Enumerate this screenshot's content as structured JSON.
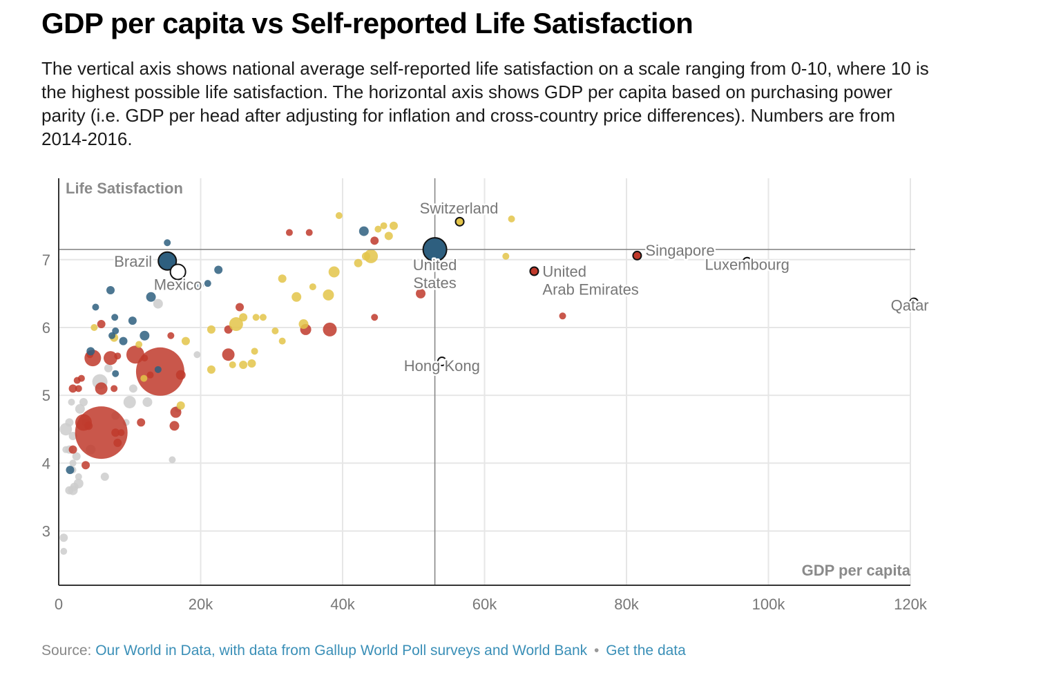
{
  "title": "GDP per capita vs Self-reported Life Satisfaction",
  "subtitle": "The vertical axis shows national average self-reported life satisfaction on a scale ranging from 0-10, where 10 is the highest possible life satisfaction. The horizontal axis shows GDP per capita based on purchasing power parity (i.e. GDP per head after adjusting for inflation and cross-country price differences). Numbers are from 2014-2016.",
  "footer": {
    "source_prefix": "Source:",
    "source_link": "Our World in Data, with data from Gallup World Poll surveys and World Bank",
    "separator": "•",
    "data_link": "Get the data"
  },
  "colors": {
    "grey": "#cccccc",
    "red": "#c0392b",
    "yellow": "#e3c449",
    "blue": "#2e5f7f",
    "grid": "#e6e6e6",
    "reference_line": "#888888",
    "link": "#3a8fb7"
  },
  "chart_data": {
    "type": "scatter",
    "title": "GDP per capita vs Self-reported Life Satisfaction",
    "xlabel": "GDP per capita",
    "ylabel": "Life Satisfaction",
    "xlim": [
      0,
      120000
    ],
    "ylim": [
      2.2,
      8.2
    ],
    "x_ticks": [
      0,
      20000,
      40000,
      60000,
      80000,
      100000,
      120000
    ],
    "x_tick_labels": [
      "0",
      "20k",
      "40k",
      "60k",
      "80k",
      "100k",
      "120k"
    ],
    "y_ticks": [
      3,
      4,
      5,
      6,
      7
    ],
    "y_tick_labels": [
      "3",
      "4",
      "5",
      "6",
      "7"
    ],
    "grid": true,
    "reference_lines": {
      "x": 53000,
      "y": 7.15
    },
    "bubble_size": "population",
    "labeled_points": [
      {
        "label": "Switzerland",
        "x": 56500,
        "y": 7.56,
        "color": "yellow",
        "size": 6
      },
      {
        "label": "Brazil",
        "x": 15300,
        "y": 6.98,
        "color": "blue",
        "size": 13
      },
      {
        "label": "Mexico",
        "x": 16800,
        "y": 6.82,
        "color": "white",
        "size": 11
      },
      {
        "label": "United States",
        "x": 53000,
        "y": 7.15,
        "color": "blue",
        "size": 17
      },
      {
        "label": "United Arab Emirates",
        "x": 67000,
        "y": 6.83,
        "color": "red",
        "size": 6
      },
      {
        "label": "Singapore",
        "x": 81500,
        "y": 7.06,
        "color": "red",
        "size": 6
      },
      {
        "label": "Luxembourg",
        "x": 97000,
        "y": 6.97,
        "color": "white",
        "size": 6
      },
      {
        "label": "Qatar",
        "x": 120500,
        "y": 6.37,
        "color": "white",
        "size": 6
      },
      {
        "label": "Hong Kong",
        "x": 54000,
        "y": 5.5,
        "color": "white",
        "size": 6
      }
    ],
    "series": [
      {
        "name": "grey",
        "points": [
          [
            700,
            2.9,
            6
          ],
          [
            700,
            2.7,
            5
          ],
          [
            1000,
            4.5,
            9
          ],
          [
            1500,
            4.6,
            6
          ],
          [
            1000,
            4.2,
            5
          ],
          [
            1500,
            3.6,
            6
          ],
          [
            2000,
            3.6,
            7
          ],
          [
            2000,
            4.4,
            6
          ],
          [
            1800,
            4.9,
            5
          ],
          [
            2800,
            3.7,
            7
          ],
          [
            3000,
            4.8,
            7
          ],
          [
            3500,
            4.9,
            6
          ],
          [
            2500,
            4.1,
            6
          ],
          [
            2000,
            3.9,
            5
          ],
          [
            1500,
            4.2,
            6
          ],
          [
            4500,
            4.2,
            7
          ],
          [
            3800,
            4.6,
            6
          ],
          [
            2800,
            3.8,
            5
          ],
          [
            6500,
            3.8,
            6
          ],
          [
            5800,
            5.2,
            11
          ],
          [
            7000,
            5.4,
            6
          ],
          [
            8000,
            4.7,
            6
          ],
          [
            10000,
            4.9,
            9
          ],
          [
            10500,
            5.1,
            6
          ],
          [
            12500,
            4.9,
            7
          ],
          [
            14000,
            6.35,
            7
          ],
          [
            16000,
            4.05,
            5
          ],
          [
            16800,
            4.8,
            5
          ],
          [
            19500,
            5.6,
            5
          ],
          [
            9500,
            4.6,
            5
          ],
          [
            2000,
            4.0,
            5
          ],
          [
            2200,
            3.65,
            6
          ]
        ]
      },
      {
        "name": "red",
        "points": [
          [
            6000,
            4.45,
            38
          ],
          [
            14300,
            5.35,
            35
          ],
          [
            3500,
            4.6,
            12
          ],
          [
            4800,
            5.55,
            12
          ],
          [
            7300,
            5.55,
            10
          ],
          [
            10800,
            5.6,
            13
          ],
          [
            6000,
            5.1,
            9
          ],
          [
            16500,
            4.75,
            8
          ],
          [
            16300,
            4.55,
            7
          ],
          [
            2800,
            5.1,
            5
          ],
          [
            2000,
            5.1,
            6
          ],
          [
            3200,
            5.25,
            5
          ],
          [
            6000,
            6.05,
            6
          ],
          [
            8300,
            4.3,
            6
          ],
          [
            3800,
            3.97,
            6
          ],
          [
            2000,
            4.2,
            6
          ],
          [
            4200,
            4.55,
            6
          ],
          [
            8000,
            4.45,
            6
          ],
          [
            8800,
            4.45,
            5
          ],
          [
            11600,
            4.6,
            6
          ],
          [
            23900,
            5.6,
            9
          ],
          [
            25500,
            6.3,
            6
          ],
          [
            23900,
            5.97,
            6
          ],
          [
            34800,
            5.97,
            8
          ],
          [
            38200,
            5.97,
            10
          ],
          [
            44500,
            6.15,
            5
          ],
          [
            44500,
            7.28,
            6
          ],
          [
            51000,
            6.5,
            7
          ],
          [
            71000,
            6.17,
            5
          ],
          [
            32500,
            7.4,
            5
          ],
          [
            35300,
            7.4,
            5
          ],
          [
            15800,
            5.88,
            5
          ],
          [
            8300,
            5.58,
            5
          ],
          [
            17200,
            5.3,
            7
          ],
          [
            12900,
            5.3,
            5
          ],
          [
            7800,
            5.1,
            5
          ],
          [
            2600,
            5.22,
            5
          ],
          [
            12100,
            5.55,
            5
          ],
          [
            15500,
            6.98,
            6
          ],
          [
            4400,
            5.6,
            5
          ]
        ]
      },
      {
        "name": "yellow",
        "points": [
          [
            5000,
            6.0,
            5
          ],
          [
            7800,
            5.85,
            6
          ],
          [
            11300,
            5.75,
            5
          ],
          [
            17200,
            4.85,
            6
          ],
          [
            17900,
            5.8,
            6
          ],
          [
            21500,
            5.97,
            6
          ],
          [
            21500,
            5.38,
            6
          ],
          [
            25000,
            6.05,
            10
          ],
          [
            26000,
            6.15,
            6
          ],
          [
            27800,
            6.15,
            5
          ],
          [
            28800,
            6.15,
            5
          ],
          [
            26000,
            5.45,
            6
          ],
          [
            27200,
            5.47,
            6
          ],
          [
            27600,
            5.65,
            5
          ],
          [
            30500,
            5.95,
            5
          ],
          [
            31500,
            5.8,
            5
          ],
          [
            31500,
            6.72,
            6
          ],
          [
            33500,
            6.45,
            7
          ],
          [
            34500,
            6.05,
            7
          ],
          [
            35800,
            6.6,
            5
          ],
          [
            38000,
            6.48,
            8
          ],
          [
            38800,
            6.82,
            8
          ],
          [
            42200,
            6.95,
            6
          ],
          [
            43300,
            7.05,
            6
          ],
          [
            44000,
            7.05,
            10
          ],
          [
            45000,
            7.45,
            5
          ],
          [
            45800,
            7.5,
            5
          ],
          [
            46500,
            7.35,
            6
          ],
          [
            47200,
            7.5,
            6
          ],
          [
            39500,
            7.65,
            5
          ],
          [
            63000,
            7.05,
            5
          ],
          [
            63800,
            7.6,
            5
          ],
          [
            12000,
            5.25,
            5
          ],
          [
            24500,
            5.45,
            5
          ]
        ]
      },
      {
        "name": "blue",
        "points": [
          [
            4500,
            5.65,
            6
          ],
          [
            5200,
            6.3,
            5
          ],
          [
            7300,
            6.55,
            6
          ],
          [
            7900,
            6.15,
            5
          ],
          [
            8000,
            5.95,
            5
          ],
          [
            9100,
            5.8,
            6
          ],
          [
            10400,
            6.1,
            6
          ],
          [
            12100,
            5.88,
            7
          ],
          [
            13000,
            6.45,
            7
          ],
          [
            15300,
            7.25,
            5
          ],
          [
            19800,
            6.62,
            6
          ],
          [
            21000,
            6.65,
            5
          ],
          [
            22500,
            6.85,
            6
          ],
          [
            43000,
            7.42,
            7
          ],
          [
            7500,
            5.88,
            5
          ],
          [
            8000,
            5.32,
            5
          ],
          [
            14000,
            5.38,
            5
          ],
          [
            1600,
            3.9,
            6
          ]
        ]
      }
    ]
  }
}
